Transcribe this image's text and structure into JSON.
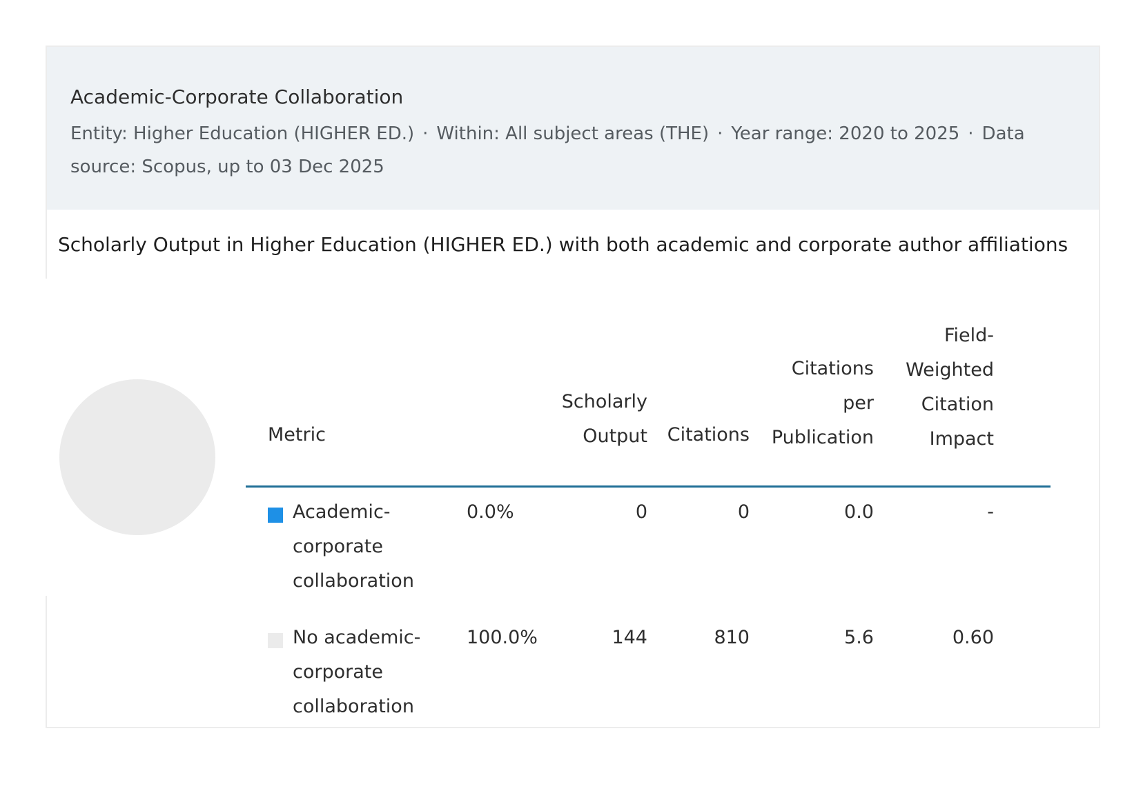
{
  "card": {
    "title": "Academic-Corporate Collaboration",
    "meta": {
      "entity": "Entity: Higher Education (HIGHER ED.)",
      "within": "Within: All subject areas (THE)",
      "year_range": "Year range: 2020 to 2025",
      "data_source": "Data source: Scopus, up to 03 Dec 2025",
      "separator": "·"
    },
    "subtitle": "Scholarly Output in Higher Education (HIGHER ED.) with both academic and corporate author affiliations"
  },
  "table": {
    "headers": {
      "metric": "Metric",
      "scholarly_output": "Scholarly Output",
      "citations": "Citations",
      "citations_per_publication": "Citations per Publication",
      "fwci": "Field-Weighted Citation Impact"
    },
    "rows": [
      {
        "label": "Academic-corporate collaboration",
        "percent": "0.0%",
        "scholarly_output": "0",
        "citations": "0",
        "citations_per_publication": "0.0",
        "fwci": "-",
        "color": "#1e90e6"
      },
      {
        "label": "No academic-corporate collaboration",
        "percent": "100.0%",
        "scholarly_output": "144",
        "citations": "810",
        "citations_per_publication": "5.6",
        "fwci": "0.60",
        "color": "#ebebeb"
      }
    ]
  },
  "chart_data": {
    "type": "pie",
    "categories": [
      "Academic-corporate collaboration",
      "No academic-corporate collaboration"
    ],
    "values": [
      0.0,
      100.0
    ],
    "colors": [
      "#1e90e6",
      "#ebebeb"
    ]
  }
}
